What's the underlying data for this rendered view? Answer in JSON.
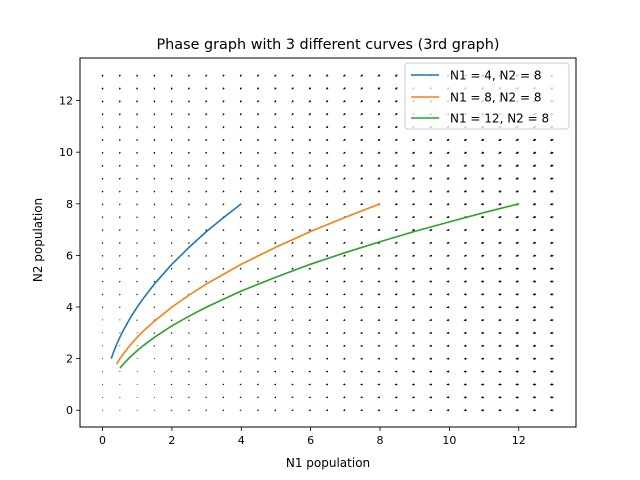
{
  "chart_data": {
    "type": "line",
    "title": "Phase graph with 3 different curves (3rd graph)",
    "xlabel": "N1 population",
    "ylabel": "N2 population",
    "xlim": [
      -0.65,
      13.65
    ],
    "ylim": [
      -0.65,
      13.65
    ],
    "xticks": [
      0,
      2,
      4,
      6,
      8,
      10,
      12
    ],
    "yticks": [
      0,
      2,
      4,
      6,
      8,
      10,
      12
    ],
    "grid": false,
    "legend_position": "top-right",
    "quiver": {
      "grid_start": 0,
      "grid_end": 13,
      "grid_step": 0.5,
      "description": "direction field of dN1/dt = -N1, dN2/dt = -N2/2"
    },
    "series": [
      {
        "name": "N1 = 4, N2 = 8",
        "color": "#1f77b4",
        "x": [
          4.0,
          3.5,
          3.0,
          2.5,
          2.0,
          1.5,
          1.2,
          1.0,
          0.8,
          0.6,
          0.5,
          0.4,
          0.3,
          0.25
        ],
        "y": [
          8.0,
          7.48,
          6.93,
          6.32,
          5.66,
          4.9,
          4.38,
          4.0,
          3.58,
          3.1,
          2.83,
          2.53,
          2.19,
          2.0
        ]
      },
      {
        "name": "N1 = 8, N2 = 8",
        "color": "#ff7f0e",
        "x": [
          8.0,
          7.0,
          6.0,
          5.0,
          4.0,
          3.0,
          2.5,
          2.0,
          1.5,
          1.2,
          1.0,
          0.8,
          0.6,
          0.5,
          0.4
        ],
        "y": [
          8.0,
          7.48,
          6.93,
          6.32,
          5.66,
          4.9,
          4.47,
          4.0,
          3.46,
          3.1,
          2.83,
          2.53,
          2.19,
          2.0,
          1.79
        ]
      },
      {
        "name": "N1 = 12, N2 = 8",
        "color": "#2ca02c",
        "x": [
          12.0,
          11.0,
          10.0,
          9.0,
          8.0,
          7.0,
          6.0,
          5.0,
          4.0,
          3.0,
          2.5,
          2.0,
          1.5,
          1.2,
          1.0,
          0.8,
          0.6,
          0.5
        ],
        "y": [
          8.0,
          7.66,
          7.3,
          6.93,
          6.53,
          6.11,
          5.66,
          5.16,
          4.62,
          4.0,
          3.65,
          3.27,
          2.83,
          2.53,
          2.31,
          2.07,
          1.79,
          1.63
        ]
      }
    ]
  }
}
